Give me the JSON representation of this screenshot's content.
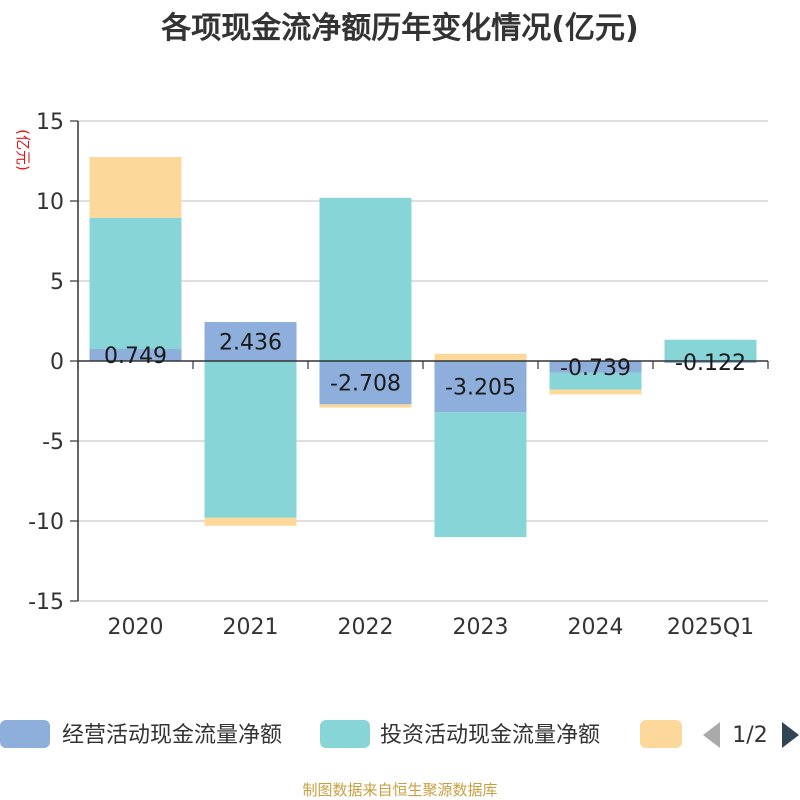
{
  "chart_data": {
    "type": "bar",
    "stacked": true,
    "title": "各项现金流净额历年变化情况(亿元)",
    "ylabel": "(亿元)",
    "ylim": [
      -15,
      15
    ],
    "yticks": [
      15,
      10,
      5,
      0,
      -5,
      -10,
      -15
    ],
    "categories": [
      "2020",
      "2021",
      "2022",
      "2023",
      "2024",
      "2025Q1"
    ],
    "series": [
      {
        "name": "经营活动现金流量净额",
        "color": "#8eaedb",
        "values": [
          0.749,
          2.436,
          -2.708,
          -3.205,
          -0.739,
          -0.122
        ],
        "labels": [
          "0.749",
          "2.436",
          "-2.708",
          "-3.205",
          "-0.739",
          "-0.122"
        ]
      },
      {
        "name": "投资活动现金流量净额",
        "color": "#88d5d8",
        "values": [
          8.2,
          -9.8,
          10.2,
          -7.8,
          -1.05,
          1.33
        ]
      },
      {
        "name": "",
        "color": "#fdd89b",
        "values": [
          3.8,
          -0.5,
          -0.2,
          0.45,
          -0.3,
          0.0
        ]
      }
    ],
    "grid": true,
    "legend": "bottom",
    "legend_page": "1/2"
  },
  "source": "制图数据来自恒生聚源数据库"
}
